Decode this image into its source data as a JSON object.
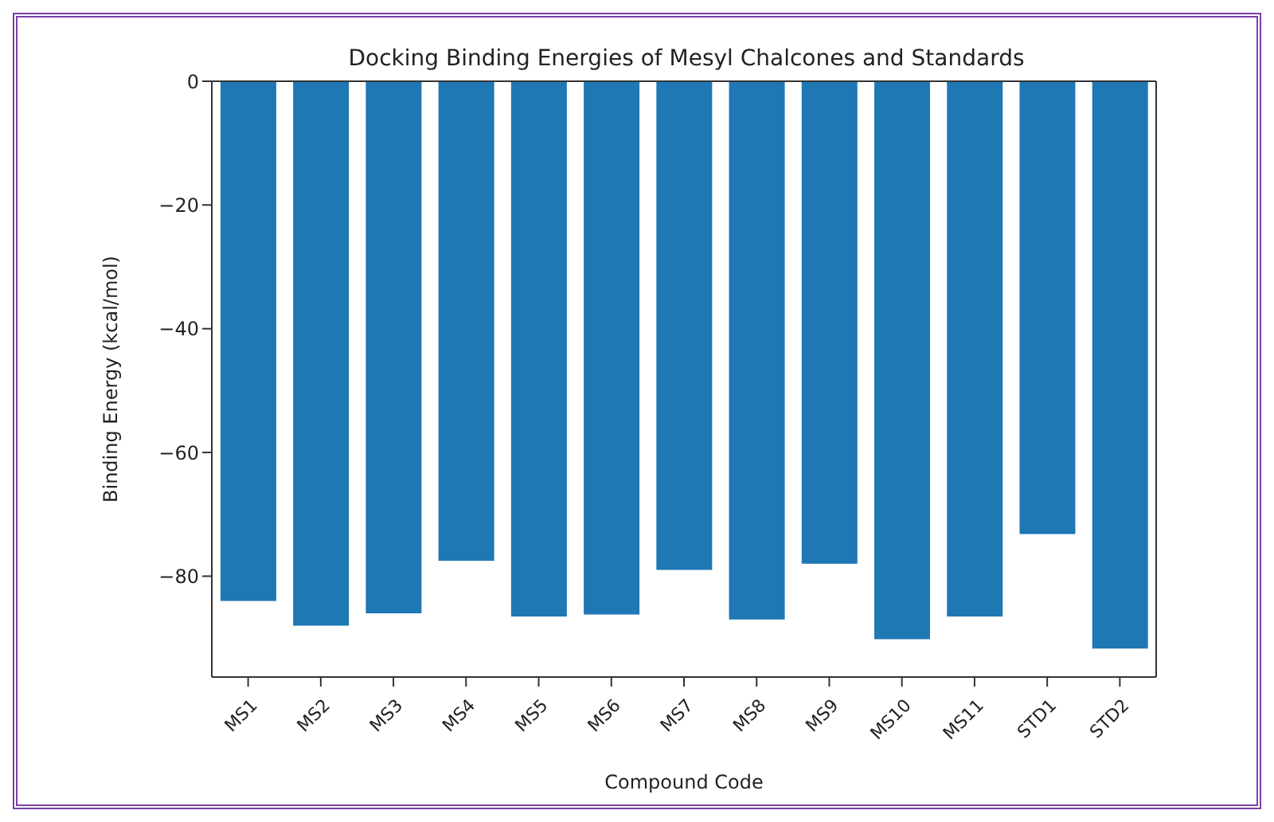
{
  "chart_data": {
    "type": "bar",
    "title": "Docking Binding Energies of Mesyl Chalcones and Standards",
    "xlabel": "Compound Code",
    "ylabel": "Binding Energy (kcal/mol)",
    "categories": [
      "MS1",
      "MS2",
      "MS3",
      "MS4",
      "MS5",
      "MS6",
      "MS7",
      "MS8",
      "MS9",
      "MS10",
      "MS11",
      "STD1",
      "STD2"
    ],
    "values": [
      -84,
      -88,
      -86,
      -77.5,
      -86.5,
      -86.2,
      -79,
      -87,
      -78,
      -90.2,
      -86.5,
      -73.2,
      -91.7
    ],
    "color": "#1f77b4",
    "ylim": [
      -96.3,
      0
    ],
    "yticks": [
      0,
      -20,
      -40,
      -60,
      -80
    ],
    "grid": false,
    "legend": false
  }
}
